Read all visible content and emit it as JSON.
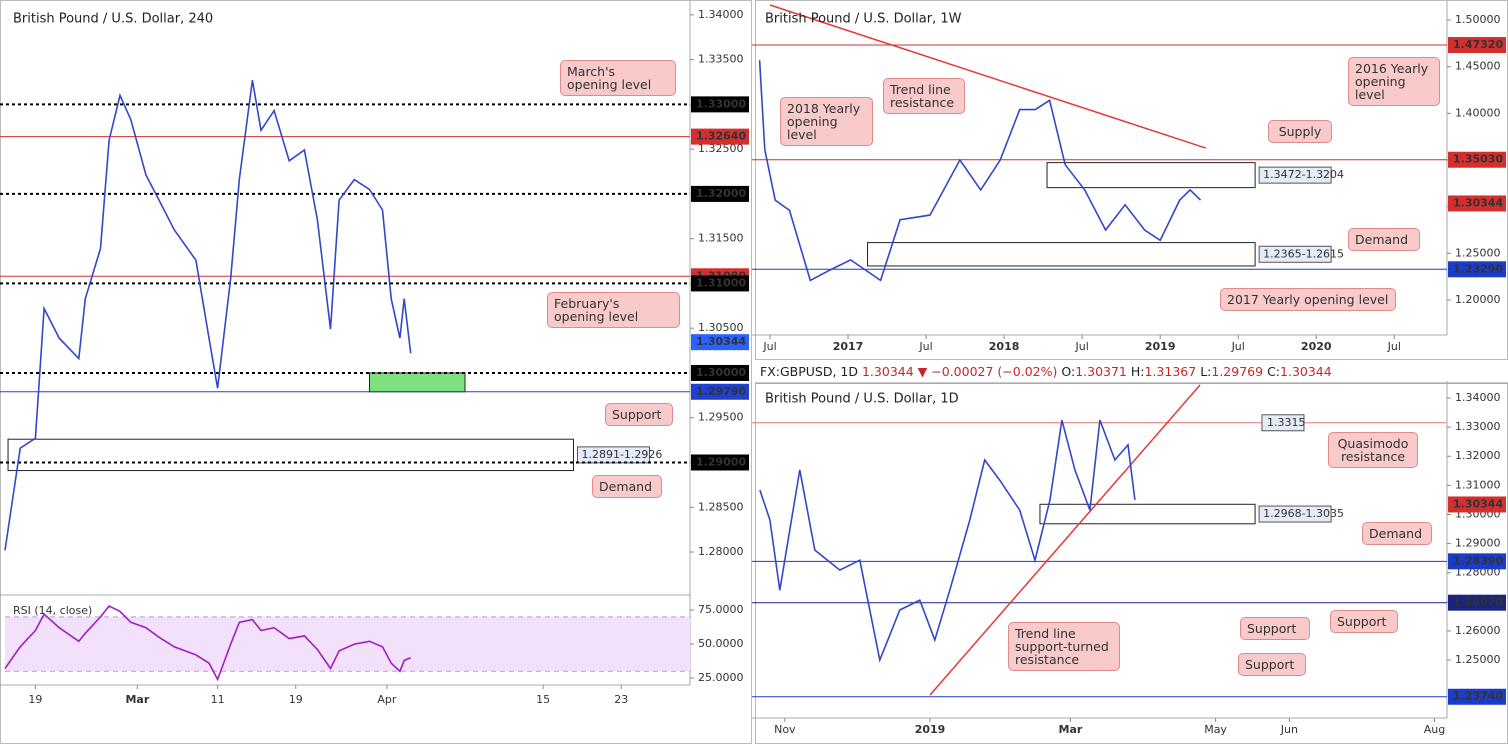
{
  "chart_data": [
    {
      "type": "line",
      "title": "British Pound / U.S. Dollar, 240",
      "color": "#3347c9",
      "x": [
        0,
        7,
        14,
        18,
        25,
        34,
        37,
        44,
        48,
        53,
        58,
        65,
        71,
        78,
        88,
        94,
        98,
        104,
        108,
        114,
        118,
        124,
        131,
        138,
        144,
        150,
        154,
        161,
        168,
        174,
        178,
        182,
        184,
        187
      ],
      "values": [
        1.2802,
        1.2916,
        1.2927,
        1.3072,
        1.3039,
        1.3016,
        1.3083,
        1.3139,
        1.326,
        1.331,
        1.3283,
        1.3221,
        1.3193,
        1.316,
        1.3126,
        1.3039,
        1.2983,
        1.3106,
        1.3216,
        1.3327,
        1.3271,
        1.3293,
        1.3237,
        1.3249,
        1.3171,
        1.3049,
        1.3193,
        1.3216,
        1.3205,
        1.3182,
        1.3083,
        1.3039,
        1.3083,
        1.3022
      ],
      "xlim": [
        0,
        315.7
      ],
      "xticks": [
        {
          "value": 14,
          "label": "19"
        },
        {
          "value": 61,
          "label": "Mar"
        },
        {
          "value": 98,
          "label": "11"
        },
        {
          "value": 134,
          "label": "19"
        },
        {
          "value": 176,
          "label": "Apr"
        },
        {
          "value": 248,
          "label": "15"
        },
        {
          "value": 284,
          "label": "23"
        }
      ],
      "ylim": [
        1.2752,
        1.3411
      ],
      "yticks": [
        {
          "value": 1.28,
          "label": "1.28000"
        },
        {
          "value": 1.285,
          "label": "1.28500"
        },
        {
          "value": 1.29,
          "label": "1.29000"
        },
        {
          "value": 1.295,
          "label": "1.29500"
        },
        {
          "value": 1.3,
          "label": "1.30000"
        },
        {
          "value": 1.305,
          "label": "1.30500"
        },
        {
          "value": 1.31,
          "label": "1.31000"
        },
        {
          "value": 1.315,
          "label": "1.31500"
        },
        {
          "value": 1.32,
          "label": "1.32000"
        },
        {
          "value": 1.325,
          "label": "1.32500"
        },
        {
          "value": 1.33,
          "label": "1.33000"
        },
        {
          "value": 1.335,
          "label": "1.33500"
        },
        {
          "value": 1.34,
          "label": "1.34000"
        }
      ],
      "levels": [
        {
          "value": 1.33,
          "label": "1.33000",
          "style": "dotted",
          "color": "#000000"
        },
        {
          "value": 1.3264,
          "label": "1.32640",
          "style": "solid",
          "color": "#d32f2f"
        },
        {
          "value": 1.32,
          "label": "1.32000",
          "style": "dotted",
          "color": "#000000"
        },
        {
          "value": 1.3108,
          "label": "1.31080",
          "style": "solid",
          "color": "#d32f2f"
        },
        {
          "value": 1.31,
          "label": "1.31000",
          "style": "dotted",
          "color": "#000000"
        },
        {
          "value": 1.30344,
          "label": "1.30344",
          "style": "none",
          "color": "#2962ff"
        },
        {
          "value": 1.3,
          "label": "1.30000",
          "style": "dotted",
          "color": "#000000"
        },
        {
          "value": 1.2979,
          "label": "1.29790",
          "style": "solid",
          "color": "#2040d0"
        },
        {
          "value": 1.29,
          "label": "1.29000",
          "style": "dotted",
          "color": "#000000"
        }
      ],
      "zones": [
        {
          "low": 1.2979,
          "high": 1.3,
          "x0": 168,
          "x1": 212,
          "color": "#7ee07e"
        },
        {
          "low": 1.2891,
          "high": 1.2926,
          "x0": 1.4,
          "x1": 262,
          "label": "1.2891-1.2926"
        }
      ],
      "annotations": [
        "March's opening level",
        "February's opening level",
        "Support",
        "Demand"
      ]
    },
    {
      "type": "line",
      "title": "RSI (14, close)",
      "color": "#a020c0",
      "x": [
        0,
        7,
        14,
        18,
        25,
        34,
        37,
        44,
        48,
        53,
        58,
        65,
        71,
        78,
        88,
        94,
        98,
        104,
        108,
        114,
        118,
        124,
        131,
        138,
        144,
        150,
        154,
        161,
        168,
        174,
        178,
        182,
        184,
        187
      ],
      "values": [
        32,
        48,
        60,
        72,
        62,
        52,
        58,
        70,
        78,
        74,
        66,
        62,
        55,
        48,
        42,
        36,
        24,
        50,
        66,
        68,
        60,
        62,
        54,
        56,
        46,
        32,
        45,
        50,
        52,
        48,
        36,
        30,
        38,
        40
      ],
      "xlim": [
        0,
        315.7
      ],
      "ylim": [
        19.9,
        84.6
      ],
      "yticks": [
        {
          "value": 25,
          "label": "25.0000"
        },
        {
          "value": 50,
          "label": "50.0000"
        },
        {
          "value": 75,
          "label": "75.0000"
        }
      ],
      "band": [
        30,
        70
      ]
    },
    {
      "type": "line",
      "title": "British Pound / U.S. Dollar, 1W",
      "color": "#3347c9",
      "x": [
        5.2,
        5.6,
        6.4,
        7.5,
        9.1,
        10.6,
        12.2,
        14.5,
        16.0,
        18.3,
        20.6,
        22.2,
        23.7,
        25.2,
        26.4,
        27.5,
        28.7,
        30.2,
        31.8,
        33.3,
        34.8,
        36.0,
        37.5,
        38.3,
        39.1
      ],
      "values": [
        1.457,
        1.361,
        1.307,
        1.296,
        1.221,
        1.232,
        1.243,
        1.221,
        1.286,
        1.291,
        1.35,
        1.318,
        1.35,
        1.404,
        1.404,
        1.414,
        1.345,
        1.318,
        1.275,
        1.302,
        1.275,
        1.264,
        1.307,
        1.318,
        1.307
      ],
      "xlim": [
        5,
        57.9
      ],
      "xticks": [
        {
          "value": 6,
          "label": "Jul"
        },
        {
          "value": 12,
          "label": "2017"
        },
        {
          "value": 18,
          "label": "Jul"
        },
        {
          "value": 24,
          "label": "2018"
        },
        {
          "value": 30,
          "label": "Jul"
        },
        {
          "value": 36,
          "label": "2019"
        },
        {
          "value": 42,
          "label": "Jul"
        },
        {
          "value": 48,
          "label": "2020"
        },
        {
          "value": 54,
          "label": "Jul"
        }
      ],
      "ylim": [
        1.1625,
        1.5161
      ],
      "yticks": [
        {
          "value": 1.2,
          "label": "1.20000"
        },
        {
          "value": 1.25,
          "label": "1.25000"
        },
        {
          "value": 1.3,
          "label": "1.30000"
        },
        {
          "value": 1.35,
          "label": "1.35000"
        },
        {
          "value": 1.4,
          "label": "1.40000"
        },
        {
          "value": 1.45,
          "label": "1.45000"
        },
        {
          "value": 1.5,
          "label": "1.50000"
        }
      ],
      "levels": [
        {
          "value": 1.4732,
          "label": "1.47320",
          "style": "solid",
          "color": "#d32f2f"
        },
        {
          "value": 1.3503,
          "label": "1.35030",
          "style": "solid",
          "color": "#d32f2f"
        },
        {
          "value": 1.30344,
          "label": "1.30344",
          "style": "none",
          "color": "#d32f2f"
        },
        {
          "value": 1.2329,
          "label": "1.23290",
          "style": "solid",
          "color": "#1a3cc8"
        }
      ],
      "zones": [
        {
          "low": 1.3204,
          "high": 1.3472,
          "x0": 27.3,
          "x1": 43.3,
          "label": "1.3472-1.3204"
        },
        {
          "low": 1.2365,
          "high": 1.2615,
          "x0": 13.5,
          "x1": 43.3,
          "label": "1.2365-1.2615"
        }
      ],
      "trend_lines": [
        {
          "x": [
            6,
            39.5
          ],
          "values": [
            1.5161,
            1.3628
          ],
          "color": "#e53935"
        }
      ],
      "annotations": [
        "Trend line resistance",
        "2018 Yearly opening level",
        "2016 Yearly opening level",
        "Supply",
        "Demand",
        "2017 Yearly opening level"
      ]
    },
    {
      "type": "line",
      "title": "British Pound / U.S. Dollar, 1D",
      "color": "#3347c9",
      "info": {
        "symbol": "FX:GBPUSD, 1D",
        "last": "1.30344",
        "arrow": "▼",
        "change": "−0.00027 (−0.02%)",
        "ohlc": [
          {
            "key": "O:",
            "value": "1.30371"
          },
          {
            "key": "H:",
            "value": "1.31367"
          },
          {
            "key": "L:",
            "value": "1.29769"
          },
          {
            "key": "C:",
            "value": "1.30344"
          }
        ]
      },
      "x": [
        20.5,
        24.7,
        28.9,
        33.1,
        37.3,
        43.6,
        54.1,
        62.5,
        70.9,
        79.3,
        87.7,
        94,
        100.3,
        108.7,
        115,
        121.3,
        129.7,
        136.1,
        142.4,
        147.4,
        152.9,
        159.2,
        163.4,
        169.7,
        175.2,
        178.1
      ],
      "values": [
        1.3084,
        1.2981,
        1.274,
        1.2947,
        1.3153,
        1.2878,
        1.2809,
        1.2843,
        1.25,
        1.2672,
        1.2706,
        1.2569,
        1.274,
        1.2981,
        1.3187,
        1.3118,
        1.3015,
        1.2843,
        1.305,
        1.3324,
        1.3153,
        1.3015,
        1.3324,
        1.3187,
        1.3239,
        1.305
      ],
      "xlim": [
        19.3,
        308.4
      ],
      "xticks": [
        {
          "value": 31,
          "label": "Nov"
        },
        {
          "value": 92,
          "label": "2019"
        },
        {
          "value": 151,
          "label": "Mar"
        },
        {
          "value": 212,
          "label": "May"
        },
        {
          "value": 243,
          "label": "Jun"
        },
        {
          "value": 304,
          "label": "Aug"
        }
      ],
      "ylim": [
        1.2301,
        1.34447
      ],
      "yticks": [
        {
          "value": 1.25,
          "label": "1.25000"
        },
        {
          "value": 1.26,
          "label": "1.26000"
        },
        {
          "value": 1.27,
          "label": "1.27000"
        },
        {
          "value": 1.28,
          "label": "1.28000"
        },
        {
          "value": 1.29,
          "label": "1.29000"
        },
        {
          "value": 1.3,
          "label": "1.30000"
        },
        {
          "value": 1.31,
          "label": "1.31000"
        },
        {
          "value": 1.32,
          "label": "1.32000"
        },
        {
          "value": 1.33,
          "label": "1.33000"
        },
        {
          "value": 1.34,
          "label": "1.34000"
        }
      ],
      "levels": [
        {
          "value": 1.3315,
          "label": "1.3315",
          "style": "solid",
          "color": "#e57373",
          "box_x": 231.5
        },
        {
          "value": 1.30344,
          "label": "1.30344",
          "style": "none",
          "color": "#d32f2f"
        },
        {
          "value": 1.2839,
          "label": "1.28390",
          "style": "solid",
          "color": "#1a3cc8"
        },
        {
          "value": 1.2697,
          "label": "1.26970",
          "style": "solid",
          "color": "#1a237e"
        },
        {
          "value": 1.2374,
          "label": "1.23740",
          "style": "solid",
          "color": "#1a3cc8"
        }
      ],
      "zones": [
        {
          "low": 1.2968,
          "high": 1.3035,
          "x0": 138.2,
          "x1": 228.6,
          "label": "1.2968-1.3035"
        }
      ],
      "trend_lines": [
        {
          "x": [
            92,
            205.5
          ],
          "values": [
            1.238,
            1.3445
          ],
          "color": "#e53935"
        }
      ],
      "annotations": [
        "Quasimodo resistance",
        "Demand",
        "Support",
        "Support",
        "Support",
        "Trend line support-turned resistance"
      ]
    }
  ]
}
